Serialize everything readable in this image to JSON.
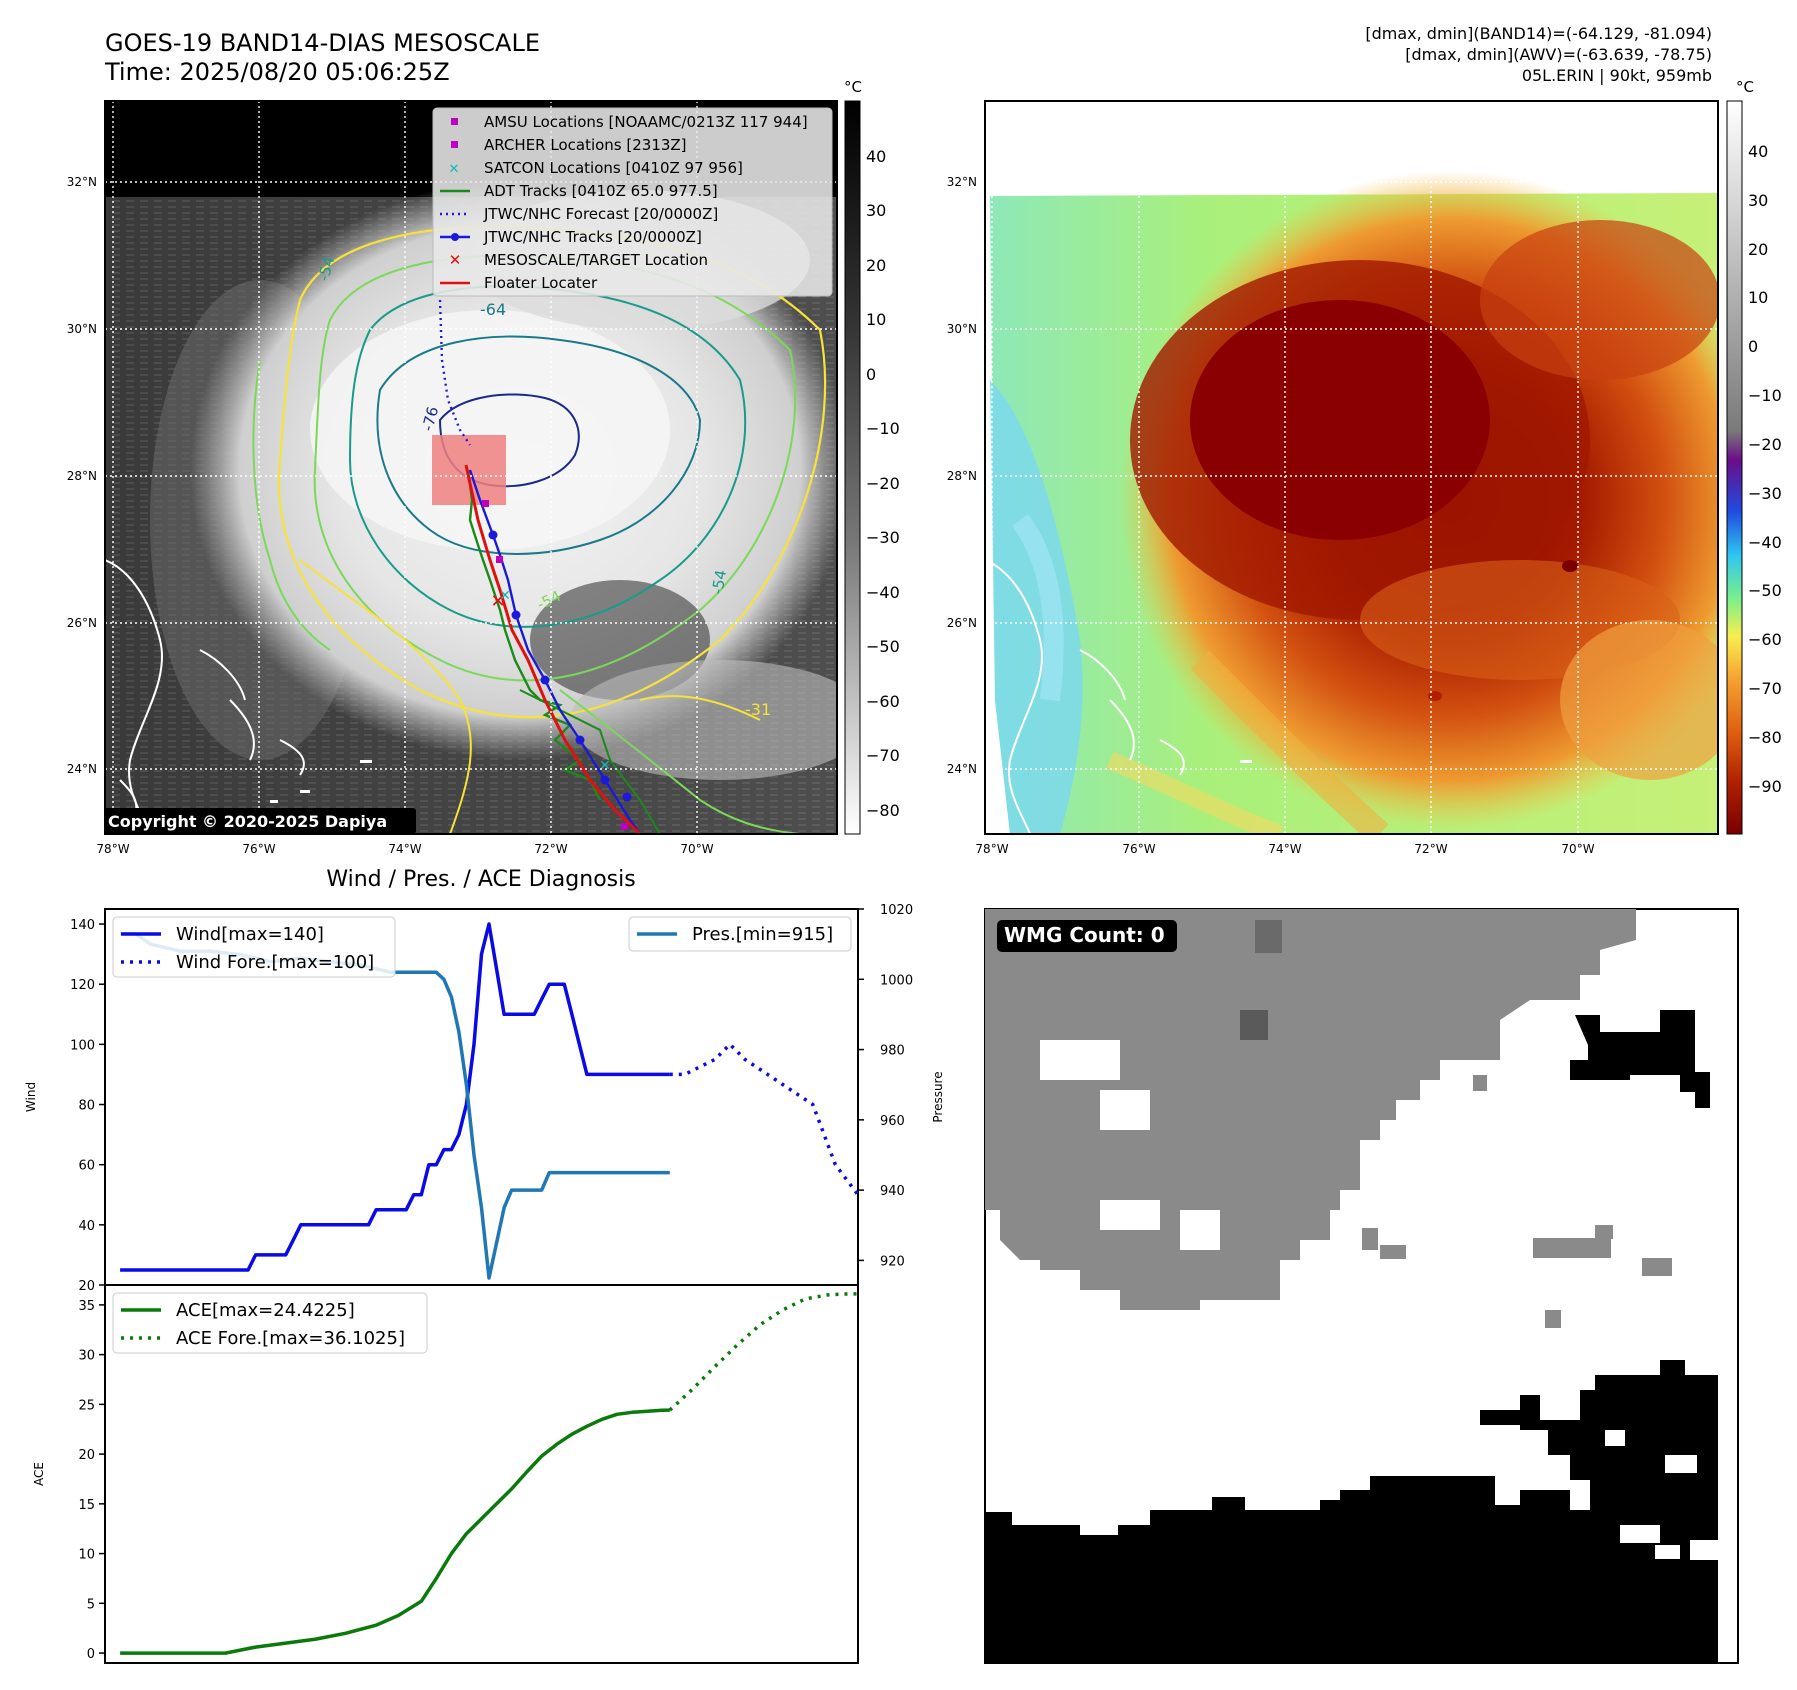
{
  "header": {
    "title": "GOES-19 BAND14-DIAS MESOSCALE",
    "time": "Time: 2025/08/20 05:06:25Z",
    "dmax_band14": "[dmax, dmin](BAND14)=(-64.129, -81.094)",
    "dmax_awv": "[dmax, dmin](AWV)=(-63.639, -78.75)",
    "storm": "05L.ERIN | 90kt, 959mb"
  },
  "map": {
    "lon_labels": [
      "78°W",
      "76°W",
      "74°W",
      "72°W",
      "70°W"
    ],
    "lat_labels": [
      "32°N",
      "30°N",
      "28°N",
      "26°N",
      "24°N"
    ],
    "contour_labels": [
      "-54",
      "-64",
      "-76",
      "-54",
      "-31",
      "-54"
    ],
    "copyright": "Copyright © 2020-2025 Dapiya"
  },
  "legend": {
    "items": [
      {
        "label": "AMSU Locations [NOAAMC/0213Z 117 944]",
        "marker": "square",
        "color": "#c000c0"
      },
      {
        "label": "ARCHER Locations [2313Z]",
        "marker": "square",
        "color": "#c000c0"
      },
      {
        "label": "SATCON Locations [0410Z 97 956]",
        "marker": "x",
        "color": "#10b8b8"
      },
      {
        "label": "ADT Tracks [0410Z 65.0 977.5]",
        "marker": "line",
        "color": "#1a8a1a"
      },
      {
        "label": "JTWC/NHC Forecast [20/0000Z]",
        "marker": "dotted",
        "color": "#1a1ad8"
      },
      {
        "label": "JTWC/NHC Tracks [20/0000Z]",
        "marker": "dotline",
        "color": "#1a1ad8"
      },
      {
        "label": "MESOSCALE/TARGET Location",
        "marker": "redx",
        "color": "#e01010"
      },
      {
        "label": "Floater Locater",
        "marker": "line",
        "color": "#e01010"
      }
    ]
  },
  "colorbar_gray": {
    "unit": "°C",
    "ticks": [
      "40",
      "30",
      "20",
      "10",
      "0",
      "−10",
      "−20",
      "−30",
      "−40",
      "−50",
      "−60",
      "−70",
      "−80"
    ]
  },
  "colorbar_color": {
    "unit": "°C",
    "ticks": [
      "40",
      "30",
      "20",
      "10",
      "0",
      "−10",
      "−20",
      "−30",
      "−40",
      "−50",
      "−60",
      "−70",
      "−80",
      "−90"
    ]
  },
  "wmg": {
    "label": "WMG Count: 0"
  },
  "chart_data": [
    {
      "type": "line",
      "title": "Wind / Pres. / ACE Diagnosis",
      "ylabel": "Wind",
      "ylabel_right": "Pressure",
      "ylim": [
        20,
        145
      ],
      "ylim_right": [
        913,
        1020
      ],
      "yticks": [
        20,
        40,
        60,
        80,
        100,
        120,
        140
      ],
      "yticks_right": [
        920,
        940,
        960,
        980,
        1000,
        1020
      ],
      "xlim": [
        -2,
        98
      ],
      "series": [
        {
          "name": "Wind[max=140]",
          "color": "#0a0ae6",
          "style": "solid",
          "axis": "left",
          "x": [
            0,
            5,
            10,
            11,
            12,
            13,
            14,
            15,
            16,
            17,
            18,
            19,
            20,
            21,
            22,
            23,
            24,
            25,
            26,
            27,
            28,
            29,
            30,
            31,
            32,
            33,
            34,
            35,
            36,
            37,
            38,
            39,
            40,
            41,
            42,
            43,
            44,
            45,
            46,
            47,
            48,
            49,
            50,
            51,
            52,
            53,
            54,
            55,
            56,
            57,
            58,
            59,
            60,
            61,
            62,
            63,
            64,
            65,
            66,
            67,
            68,
            69,
            70,
            71,
            72,
            73
          ],
          "y": [
            25,
            25,
            25,
            25,
            25,
            25,
            25,
            25,
            25,
            25,
            30,
            30,
            30,
            30,
            30,
            35,
            40,
            40,
            40,
            40,
            40,
            40,
            40,
            40,
            40,
            40,
            45,
            45,
            45,
            45,
            45,
            50,
            50,
            60,
            60,
            65,
            65,
            70,
            80,
            100,
            130,
            140,
            125,
            110,
            110,
            110,
            110,
            110,
            115,
            120,
            120,
            120,
            110,
            100,
            90,
            90,
            90,
            90,
            90,
            90,
            90,
            90,
            90,
            90,
            90,
            90
          ]
        },
        {
          "name": "Wind Fore.[max=100]",
          "color": "#0a0ae6",
          "style": "dotted",
          "axis": "left",
          "x": [
            73,
            75,
            79,
            81,
            83,
            86,
            89,
            92,
            95,
            98
          ],
          "y": [
            90,
            90,
            95,
            100,
            95,
            90,
            85,
            80,
            60,
            50
          ]
        },
        {
          "name": "Pres.[min=915]",
          "color": "#1f77b4",
          "style": "solid",
          "axis": "right",
          "x": [
            0,
            2,
            4,
            8,
            12,
            16,
            20,
            24,
            28,
            32,
            36,
            38,
            40,
            42,
            43,
            44,
            45,
            46,
            47,
            48,
            49,
            50,
            51,
            52,
            53,
            54,
            55,
            56,
            57,
            58,
            59,
            60,
            61,
            62,
            63,
            64,
            65,
            66,
            67,
            68,
            69,
            70,
            71,
            72,
            73
          ],
          "y": [
            1013,
            1013,
            1010,
            1008,
            1008,
            1007,
            1005,
            1006,
            1005,
            1004,
            1002,
            1002,
            1002,
            1002,
            1000,
            995,
            985,
            970,
            950,
            935,
            915,
            925,
            935,
            940,
            940,
            940,
            940,
            940,
            945,
            945,
            945,
            945,
            945,
            945,
            945,
            945,
            945,
            945,
            945,
            945,
            945,
            945,
            945,
            945,
            945
          ]
        }
      ]
    },
    {
      "type": "line",
      "ylabel": "ACE",
      "ylim": [
        -1,
        37
      ],
      "yticks": [
        0,
        5,
        10,
        15,
        20,
        25,
        30,
        35
      ],
      "xlim": [
        -2,
        98
      ],
      "series": [
        {
          "name": "ACE[max=24.4225]",
          "color": "#0a7a0a",
          "style": "solid",
          "x": [
            0,
            5,
            10,
            14,
            18,
            22,
            26,
            30,
            34,
            37,
            40,
            42,
            44,
            46,
            48,
            50,
            52,
            54,
            56,
            58,
            60,
            62,
            64,
            66,
            68,
            70,
            72,
            73
          ],
          "y": [
            0,
            0,
            0,
            0,
            0.6,
            1.0,
            1.4,
            2.0,
            2.8,
            3.8,
            5.2,
            7.5,
            10.0,
            12.0,
            13.5,
            15.0,
            16.5,
            18.2,
            19.8,
            21.0,
            22.0,
            22.8,
            23.5,
            24.0,
            24.2,
            24.3,
            24.4,
            24.4225
          ]
        },
        {
          "name": "ACE Fore.[max=36.1025]",
          "color": "#0a7a0a",
          "style": "dotted",
          "x": [
            73,
            76,
            79,
            82,
            85,
            88,
            91,
            94,
            96,
            98
          ],
          "y": [
            24.4225,
            26.5,
            28.8,
            31.0,
            33.0,
            34.5,
            35.6,
            36.0,
            36.1,
            36.1025
          ]
        }
      ]
    }
  ]
}
